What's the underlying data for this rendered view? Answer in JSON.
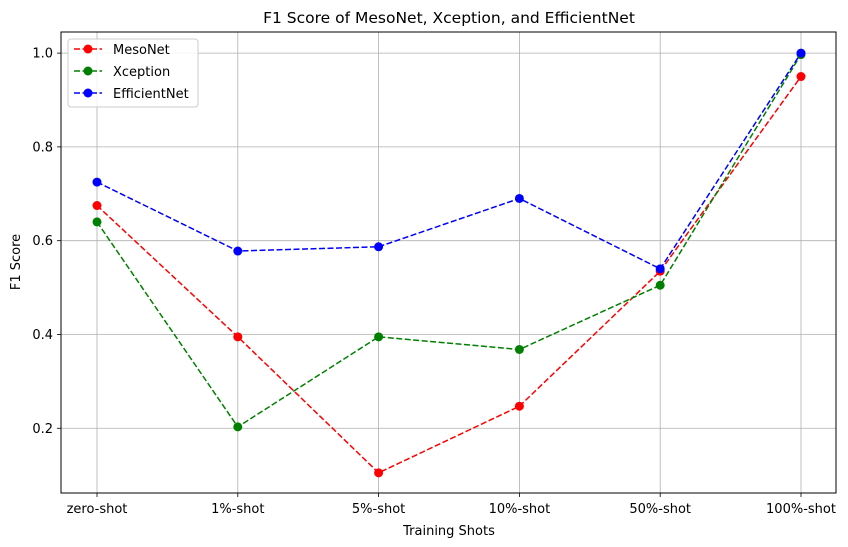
{
  "chart_data": {
    "type": "line",
    "title": "F1 Score of MesoNet, Xception, and EfficientNet",
    "xlabel": "Training Shots",
    "ylabel": "F1 Score",
    "categories": [
      "zero-shot",
      "1%-shot",
      "5%-shot",
      "10%-shot",
      "50%-shot",
      "100%-shot"
    ],
    "yticks": [
      "0.2",
      "0.4",
      "0.6",
      "0.8",
      "1.0"
    ],
    "ylim": [
      0.062,
      1.045
    ],
    "grid": true,
    "legend_position": "top-left",
    "series": [
      {
        "name": "MesoNet",
        "color": "#ff0000",
        "values": [
          0.675,
          0.395,
          0.105,
          0.247,
          0.535,
          0.95
        ]
      },
      {
        "name": "Xception",
        "color": "#008000",
        "values": [
          0.64,
          0.203,
          0.395,
          0.368,
          0.505,
          0.997
        ]
      },
      {
        "name": "EfficientNet",
        "color": "#0000ff",
        "values": [
          0.725,
          0.578,
          0.587,
          0.69,
          0.54,
          1.0
        ]
      }
    ]
  }
}
